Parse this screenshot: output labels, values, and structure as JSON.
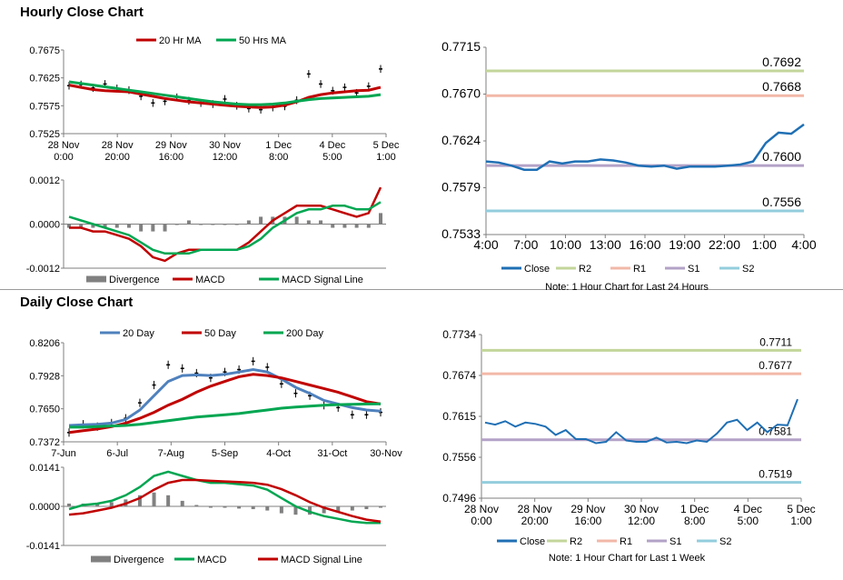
{
  "hourly": {
    "title": "Hourly Close Chart",
    "price": {
      "type": "line",
      "ylim": [
        0.7525,
        0.7675
      ],
      "yticks": [
        "0.7675",
        "0.7625",
        "0.7575",
        "0.7525"
      ],
      "xticks": [
        [
          "28 Nov",
          "0:00"
        ],
        [
          "28 Nov",
          "20:00"
        ],
        [
          "29 Nov",
          "16:00"
        ],
        [
          "30 Nov",
          "12:00"
        ],
        [
          "1 Dec",
          "8:00"
        ],
        [
          "4 Dec",
          "5:00"
        ],
        [
          "5 Dec",
          "1:00"
        ]
      ],
      "legend": [
        "20 Hr MA",
        "50 Hrs MA"
      ],
      "series": [
        {
          "name": "20 Hr MA",
          "color": "#c00000",
          "values": [
            0.7612,
            0.7608,
            0.7604,
            0.7602,
            0.7601,
            0.76,
            0.7596,
            0.7592,
            0.7588,
            0.7585,
            0.7582,
            0.758,
            0.7578,
            0.7576,
            0.7574,
            0.7573,
            0.7572,
            0.7573,
            0.7576,
            0.7582,
            0.759,
            0.7595,
            0.7598,
            0.76,
            0.7602,
            0.7603,
            0.7608
          ]
        },
        {
          "name": "50 Hrs MA",
          "color": "#00a651",
          "values": [
            0.7618,
            0.7615,
            0.7612,
            0.7609,
            0.7606,
            0.7603,
            0.76,
            0.7597,
            0.7594,
            0.7591,
            0.7588,
            0.7585,
            0.7582,
            0.758,
            0.7578,
            0.7577,
            0.7577,
            0.7578,
            0.758,
            0.7583,
            0.7586,
            0.7588,
            0.7589,
            0.759,
            0.7591,
            0.7592,
            0.7595
          ]
        }
      ],
      "close": [
        0.7611,
        0.7613,
        0.7607,
        0.7614,
        0.7606,
        0.7603,
        0.7592,
        0.758,
        0.7583,
        0.759,
        0.7584,
        0.758,
        0.7578,
        0.7587,
        0.7575,
        0.757,
        0.7568,
        0.7572,
        0.7574,
        0.7585,
        0.7632,
        0.7614,
        0.7602,
        0.7608,
        0.7598,
        0.761,
        0.7641
      ]
    },
    "macd": {
      "ylim": [
        -0.0012,
        0.0012
      ],
      "yticks": [
        "0.0012",
        "0.0000",
        "-0.0012"
      ],
      "legend": [
        "Divergence",
        "MACD",
        "MACD Signal Line"
      ],
      "series": [
        {
          "name": "MACD",
          "color": "#c00000",
          "values": [
            -0.0001,
            -0.0001,
            -0.0002,
            -0.0002,
            -0.0003,
            -0.0004,
            -0.0006,
            -0.0009,
            -0.001,
            -0.0008,
            -0.0007,
            -0.0007,
            -0.0007,
            -0.0007,
            -0.0007,
            -0.0005,
            -0.0002,
            0.0001,
            0.0003,
            0.0005,
            0.0005,
            0.0005,
            0.0004,
            0.0003,
            0.0002,
            0.0003,
            0.001
          ]
        },
        {
          "name": "MACD Signal Line",
          "color": "#00a651",
          "values": [
            0.0002,
            0.0001,
            0.0,
            -0.0001,
            -0.0002,
            -0.0003,
            -0.0005,
            -0.0007,
            -0.0008,
            -0.0008,
            -0.0008,
            -0.0007,
            -0.0007,
            -0.0007,
            -0.0007,
            -0.0006,
            -0.0004,
            -0.0001,
            0.0001,
            0.0003,
            0.0004,
            0.0004,
            0.0005,
            0.0005,
            0.0004,
            0.0004,
            0.0006
          ]
        }
      ],
      "divergence": [
        -0.0001,
        -0.0001,
        -0.0001,
        -0.0001,
        -0.0001,
        -0.0001,
        -0.0002,
        -0.0002,
        -0.0002,
        0.0,
        0.0001,
        0.0,
        0.0,
        0.0,
        0.0,
        0.0001,
        0.0002,
        0.0002,
        0.0002,
        0.0002,
        0.0001,
        0.0001,
        -0.0001,
        -0.0001,
        -0.0001,
        -0.0001,
        0.0003
      ]
    },
    "levels": {
      "ylim": [
        0.7533,
        0.7715
      ],
      "yticks": [
        "0.7715",
        "0.7670",
        "0.7624",
        "0.7579",
        "0.7533"
      ],
      "xticks": [
        "4:00",
        "7:00",
        "10:00",
        "13:00",
        "16:00",
        "19:00",
        "22:00",
        "1:00",
        "4:00"
      ],
      "close": [
        0.7604,
        0.7603,
        0.76,
        0.7596,
        0.7596,
        0.7604,
        0.7602,
        0.7604,
        0.7604,
        0.7606,
        0.7605,
        0.7603,
        0.76,
        0.7599,
        0.76,
        0.7597,
        0.7599,
        0.7599,
        0.7599,
        0.76,
        0.7601,
        0.7604,
        0.7622,
        0.7632,
        0.7631,
        0.764
      ],
      "lines": [
        {
          "name": "R2",
          "value": 0.7692,
          "label": "0.7692",
          "color": "#c3d69b"
        },
        {
          "name": "R1",
          "value": 0.7668,
          "label": "0.7668",
          "color": "#f2b8a8"
        },
        {
          "name": "S1",
          "value": 0.76,
          "label": "0.7600",
          "color": "#b3a2c7"
        },
        {
          "name": "S2",
          "value": 0.7556,
          "label": "0.7556",
          "color": "#93cddd"
        }
      ],
      "legend": [
        "Close",
        "R2",
        "R1",
        "S1",
        "S2"
      ],
      "note": "Note: 1 Hour Chart for Last 24 Hours"
    }
  },
  "daily": {
    "title": "Daily Close Chart",
    "price": {
      "type": "line",
      "ylim": [
        0.7372,
        0.8206
      ],
      "yticks": [
        "0.8206",
        "0.7928",
        "0.7650",
        "0.7372"
      ],
      "xticks": [
        "7-Jun",
        "6-Jul",
        "7-Aug",
        "5-Sep",
        "4-Oct",
        "31-Oct",
        "30-Nov"
      ],
      "legend": [
        "20 Day",
        "50 Day",
        "200 Day"
      ],
      "series": [
        {
          "name": "20 Day",
          "color": "#4f81bd",
          "values": [
            0.751,
            0.7515,
            0.752,
            0.753,
            0.756,
            0.764,
            0.776,
            0.788,
            0.793,
            0.7935,
            0.793,
            0.794,
            0.796,
            0.798,
            0.796,
            0.79,
            0.783,
            0.778,
            0.772,
            0.769,
            0.766,
            0.764,
            0.763
          ]
        },
        {
          "name": "50 Day",
          "color": "#c00000",
          "values": [
            0.745,
            0.7465,
            0.748,
            0.75,
            0.753,
            0.757,
            0.762,
            0.768,
            0.773,
            0.779,
            0.784,
            0.788,
            0.792,
            0.794,
            0.793,
            0.791,
            0.788,
            0.785,
            0.782,
            0.779,
            0.775,
            0.771,
            0.769
          ]
        },
        {
          "name": "200 Day",
          "color": "#00a651",
          "values": [
            0.7495,
            0.7495,
            0.75,
            0.7505,
            0.751,
            0.752,
            0.7535,
            0.755,
            0.7565,
            0.758,
            0.759,
            0.76,
            0.761,
            0.7625,
            0.764,
            0.7655,
            0.7665,
            0.7672,
            0.768,
            0.7685,
            0.7688,
            0.769,
            0.7692
          ]
        }
      ],
      "close": [
        0.745,
        0.752,
        0.75,
        0.753,
        0.757,
        0.77,
        0.785,
        0.802,
        0.799,
        0.795,
        0.791,
        0.796,
        0.798,
        0.805,
        0.8,
        0.786,
        0.778,
        0.776,
        0.768,
        0.766,
        0.76,
        0.76,
        0.762
      ]
    },
    "macd": {
      "ylim": [
        -0.0141,
        0.0141
      ],
      "yticks": [
        "0.0141",
        "0.0000",
        "-0.0141"
      ],
      "legend": [
        "Divergence",
        "MACD",
        "MACD Signal Line"
      ],
      "series": [
        {
          "name": "MACD",
          "color": "#00a651",
          "values": [
            -0.001,
            0.0005,
            0.001,
            0.002,
            0.004,
            0.007,
            0.011,
            0.0125,
            0.011,
            0.0095,
            0.0085,
            0.0085,
            0.008,
            0.0075,
            0.006,
            0.003,
            0.0,
            -0.002,
            -0.0035,
            -0.0045,
            -0.0055,
            -0.006,
            -0.006
          ]
        },
        {
          "name": "MACD Signal Line",
          "color": "#c00000",
          "values": [
            -0.003,
            -0.0025,
            -0.0015,
            -0.0005,
            0.001,
            0.003,
            0.006,
            0.0085,
            0.0095,
            0.0095,
            0.0092,
            0.009,
            0.0088,
            0.0085,
            0.0078,
            0.0062,
            0.004,
            0.0015,
            -0.0005,
            -0.002,
            -0.0035,
            -0.0048,
            -0.0055
          ]
        }
      ],
      "divergence": [
        0.001,
        0.001,
        0.0012,
        0.0015,
        0.0025,
        0.004,
        0.005,
        0.004,
        0.002,
        0.0005,
        -0.0005,
        -0.0005,
        -0.0008,
        -0.001,
        -0.0015,
        -0.0025,
        -0.003,
        -0.003,
        -0.0025,
        -0.002,
        -0.0015,
        -0.001,
        -0.0005
      ]
    },
    "levels": {
      "ylim": [
        0.7496,
        0.7734
      ],
      "yticks": [
        "0.7734",
        "0.7674",
        "0.7615",
        "0.7556",
        "0.7496"
      ],
      "xticks": [
        [
          "28 Nov",
          "0:00"
        ],
        [
          "28 Nov",
          "20:00"
        ],
        [
          "29 Nov",
          "16:00"
        ],
        [
          "30 Nov",
          "12:00"
        ],
        [
          "1 Dec",
          "8:00"
        ],
        [
          "4 Dec",
          "5:00"
        ],
        [
          "5 Dec",
          "1:00"
        ]
      ],
      "close": [
        0.7606,
        0.7603,
        0.7608,
        0.76,
        0.7606,
        0.7604,
        0.76,
        0.7588,
        0.7595,
        0.7582,
        0.7582,
        0.7576,
        0.7578,
        0.7592,
        0.758,
        0.7578,
        0.7578,
        0.7584,
        0.7577,
        0.7578,
        0.7576,
        0.758,
        0.7578,
        0.759,
        0.7606,
        0.761,
        0.7595,
        0.7606,
        0.7592,
        0.7603,
        0.7602,
        0.764
      ],
      "lines": [
        {
          "name": "R2",
          "value": 0.7711,
          "label": "0.7711",
          "color": "#c3d69b"
        },
        {
          "name": "R1",
          "value": 0.7677,
          "label": "0.7677",
          "color": "#f2b8a8"
        },
        {
          "name": "S1",
          "value": 0.7581,
          "label": "0.7581",
          "color": "#b3a2c7"
        },
        {
          "name": "S2",
          "value": 0.7519,
          "label": "0.7519",
          "color": "#93cddd"
        }
      ],
      "legend": [
        "Close",
        "R2",
        "R1",
        "S1",
        "S2"
      ],
      "note": "Note: 1 Hour Chart for Last 1 Week"
    }
  },
  "colors": {
    "close": "#1f6fb4",
    "divergence": "#808080",
    "axis": "#7f7f7f",
    "ohlc": "#000000"
  }
}
